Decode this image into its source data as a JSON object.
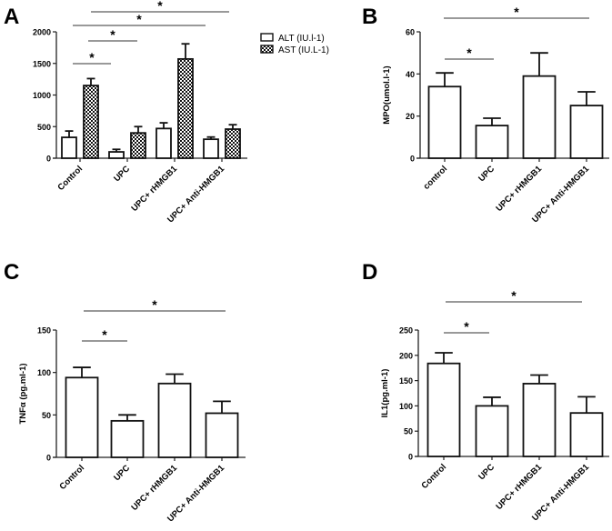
{
  "chart_data": [
    {
      "panel": "A",
      "type": "bar",
      "title": "",
      "xlabel": "",
      "ylabel": "",
      "ylim": [
        0,
        2000
      ],
      "yticks": [
        0,
        500,
        1000,
        1500,
        2000
      ],
      "categories": [
        "Control",
        "UPC",
        "UPC+ rHMGB1",
        "UPC+ Anti-HMGB1"
      ],
      "legend_position": "top-right",
      "series": [
        {
          "name": "ALT (IU.l-1)",
          "pattern": "open",
          "values": [
            330,
            100,
            470,
            300
          ],
          "error": [
            100,
            40,
            90,
            35
          ]
        },
        {
          "name": "AST (IU.L-1)",
          "pattern": "checkered",
          "values": [
            1150,
            400,
            1570,
            460
          ],
          "error": [
            110,
            100,
            240,
            70
          ]
        }
      ],
      "significance": [
        {
          "from": 0,
          "to": 3,
          "label": "*"
        },
        {
          "from": 0,
          "to": 2,
          "label": "*"
        },
        {
          "from": 0,
          "to": 1,
          "label": "*"
        },
        {
          "from": 0,
          "to": 1,
          "label": "*"
        }
      ]
    },
    {
      "panel": "B",
      "type": "bar",
      "title": "",
      "xlabel": "",
      "ylabel": "MPO(umol.l-1)",
      "ylim": [
        0,
        60
      ],
      "yticks": [
        0,
        20,
        40,
        60
      ],
      "categories": [
        "control",
        "UPC",
        "UPC+ rHMGB1",
        "UPC+ Anti-HMGB1"
      ],
      "series": [
        {
          "name": "MPO",
          "values": [
            34,
            15.5,
            39,
            25
          ],
          "error": [
            6.5,
            3.5,
            11,
            6.5
          ]
        }
      ],
      "significance": [
        {
          "from": 0,
          "to": 3,
          "label": "*"
        },
        {
          "from": 0,
          "to": 1,
          "label": "*"
        }
      ]
    },
    {
      "panel": "C",
      "type": "bar",
      "title": "",
      "xlabel": "",
      "ylabel": "TNFα (pg.ml-1)",
      "ylim": [
        0,
        150
      ],
      "yticks": [
        0,
        50,
        100,
        150
      ],
      "categories": [
        "Control",
        "UPC",
        "UPC+ rHMGB1",
        "UPC+ Anti-HMGB1"
      ],
      "series": [
        {
          "name": "TNFα",
          "values": [
            94,
            43,
            87,
            52
          ],
          "error": [
            12,
            7,
            11,
            14
          ]
        }
      ],
      "significance": [
        {
          "from": 0,
          "to": 3,
          "label": "*"
        },
        {
          "from": 0,
          "to": 1,
          "label": "*"
        }
      ]
    },
    {
      "panel": "D",
      "type": "bar",
      "title": "",
      "xlabel": "",
      "ylabel": "IL1(pg.ml-1)",
      "ylim": [
        0,
        250
      ],
      "yticks": [
        0,
        50,
        100,
        150,
        200,
        250
      ],
      "categories": [
        "Control",
        "UPC",
        "UPC+ rHMGB1",
        "UPC+ Anti-HMGB1"
      ],
      "series": [
        {
          "name": "IL1",
          "values": [
            184,
            100,
            144,
            86
          ],
          "error": [
            21,
            17,
            17,
            32
          ]
        }
      ],
      "significance": [
        {
          "from": 0,
          "to": 3,
          "label": "*"
        },
        {
          "from": 0,
          "to": 1,
          "label": "*"
        }
      ]
    }
  ]
}
